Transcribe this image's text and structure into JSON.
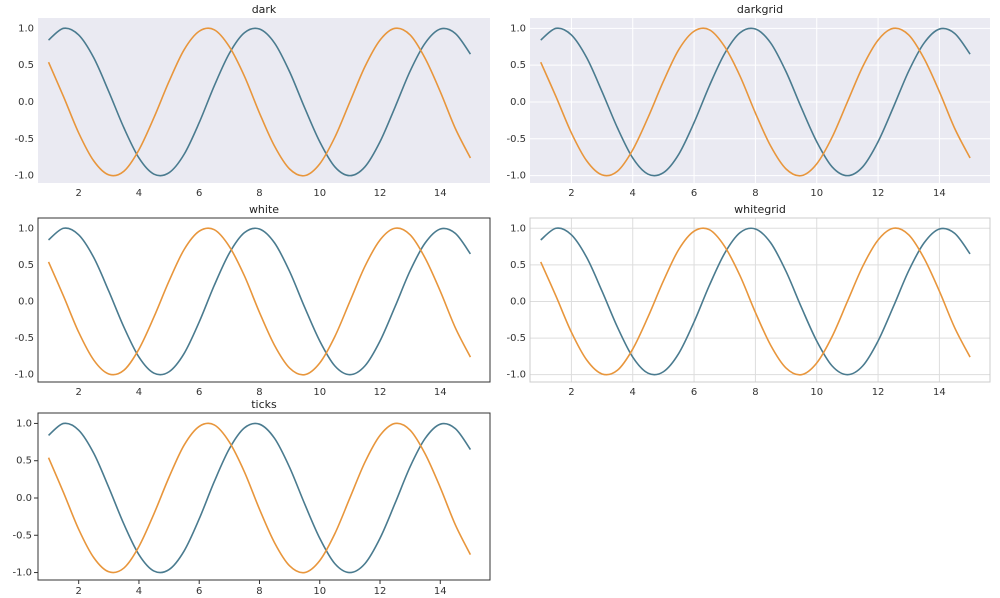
{
  "chart_data": [
    {
      "type": "line",
      "title": "dark",
      "background": "#eaeaf2",
      "grid": false,
      "frame": false,
      "tick_marks": false,
      "x": [
        1,
        1.5,
        2,
        2.5,
        3,
        3.5,
        4,
        4.5,
        5,
        5.5,
        6,
        6.5,
        7,
        7.5,
        8,
        8.5,
        9,
        9.5,
        10,
        10.5,
        11,
        11.5,
        12,
        12.5,
        13,
        13.5,
        14,
        14.5,
        15
      ],
      "series": [
        {
          "color": "#4a7b8f",
          "values": [
            0.84,
            1.0,
            0.91,
            0.6,
            0.14,
            -0.35,
            -0.76,
            -0.98,
            -0.96,
            -0.71,
            -0.28,
            0.22,
            0.66,
            0.94,
            0.99,
            0.8,
            0.41,
            -0.08,
            -0.54,
            -0.88,
            -1.0,
            -0.88,
            -0.54,
            -0.07,
            0.42,
            0.8,
            0.99,
            0.93,
            0.65
          ]
        },
        {
          "color": "#e8963c",
          "values": [
            0.54,
            0.07,
            -0.42,
            -0.8,
            -0.99,
            -0.94,
            -0.65,
            -0.21,
            0.28,
            0.71,
            0.96,
            0.98,
            0.75,
            0.35,
            -0.15,
            -0.6,
            -0.91,
            -1.0,
            -0.84,
            -0.48,
            0.0,
            0.48,
            0.84,
            1.0,
            0.91,
            0.59,
            0.14,
            -0.36,
            -0.76
          ]
        }
      ],
      "xlim": [
        0.65,
        15.65
      ],
      "ylim": [
        -1.1,
        1.14
      ],
      "xticks": [
        2,
        4,
        6,
        8,
        10,
        12,
        14
      ],
      "yticks": [
        {
          "value": 1,
          "label": "1.0"
        },
        {
          "value": 0.5,
          "label": "0.5"
        },
        {
          "value": 0,
          "label": "0.0"
        },
        {
          "value": -0.5,
          "label": "-0.5"
        },
        {
          "value": -1,
          "label": "-1.0"
        }
      ]
    },
    {
      "type": "line",
      "title": "darkgrid",
      "background": "#eaeaf2",
      "grid": true,
      "grid_color": "#ffffff",
      "frame": false,
      "tick_marks": false,
      "x": [
        1,
        1.5,
        2,
        2.5,
        3,
        3.5,
        4,
        4.5,
        5,
        5.5,
        6,
        6.5,
        7,
        7.5,
        8,
        8.5,
        9,
        9.5,
        10,
        10.5,
        11,
        11.5,
        12,
        12.5,
        13,
        13.5,
        14,
        14.5,
        15
      ],
      "series": [
        {
          "color": "#4a7b8f",
          "values": [
            0.84,
            1.0,
            0.91,
            0.6,
            0.14,
            -0.35,
            -0.76,
            -0.98,
            -0.96,
            -0.71,
            -0.28,
            0.22,
            0.66,
            0.94,
            0.99,
            0.8,
            0.41,
            -0.08,
            -0.54,
            -0.88,
            -1.0,
            -0.88,
            -0.54,
            -0.07,
            0.42,
            0.8,
            0.99,
            0.93,
            0.65
          ]
        },
        {
          "color": "#e8963c",
          "values": [
            0.54,
            0.07,
            -0.42,
            -0.8,
            -0.99,
            -0.94,
            -0.65,
            -0.21,
            0.28,
            0.71,
            0.96,
            0.98,
            0.75,
            0.35,
            -0.15,
            -0.6,
            -0.91,
            -1.0,
            -0.84,
            -0.48,
            0.0,
            0.48,
            0.84,
            1.0,
            0.91,
            0.59,
            0.14,
            -0.36,
            -0.76
          ]
        }
      ],
      "xlim": [
        0.65,
        15.65
      ],
      "ylim": [
        -1.1,
        1.14
      ],
      "xticks": [
        2,
        4,
        6,
        8,
        10,
        12,
        14
      ],
      "yticks": [
        {
          "value": 1,
          "label": "1.0"
        },
        {
          "value": 0.5,
          "label": "0.5"
        },
        {
          "value": 0,
          "label": "0.0"
        },
        {
          "value": -0.5,
          "label": "-0.5"
        },
        {
          "value": -1,
          "label": "-1.0"
        }
      ]
    },
    {
      "type": "line",
      "title": "white",
      "background": "#ffffff",
      "grid": false,
      "frame": true,
      "frame_color": "#333333",
      "tick_marks": false,
      "x": [
        1,
        1.5,
        2,
        2.5,
        3,
        3.5,
        4,
        4.5,
        5,
        5.5,
        6,
        6.5,
        7,
        7.5,
        8,
        8.5,
        9,
        9.5,
        10,
        10.5,
        11,
        11.5,
        12,
        12.5,
        13,
        13.5,
        14,
        14.5,
        15
      ],
      "series": [
        {
          "color": "#4a7b8f",
          "values": [
            0.84,
            1.0,
            0.91,
            0.6,
            0.14,
            -0.35,
            -0.76,
            -0.98,
            -0.96,
            -0.71,
            -0.28,
            0.22,
            0.66,
            0.94,
            0.99,
            0.8,
            0.41,
            -0.08,
            -0.54,
            -0.88,
            -1.0,
            -0.88,
            -0.54,
            -0.07,
            0.42,
            0.8,
            0.99,
            0.93,
            0.65
          ]
        },
        {
          "color": "#e8963c",
          "values": [
            0.54,
            0.07,
            -0.42,
            -0.8,
            -0.99,
            -0.94,
            -0.65,
            -0.21,
            0.28,
            0.71,
            0.96,
            0.98,
            0.75,
            0.35,
            -0.15,
            -0.6,
            -0.91,
            -1.0,
            -0.84,
            -0.48,
            0.0,
            0.48,
            0.84,
            1.0,
            0.91,
            0.59,
            0.14,
            -0.36,
            -0.76
          ]
        }
      ],
      "xlim": [
        0.65,
        15.65
      ],
      "ylim": [
        -1.1,
        1.14
      ],
      "xticks": [
        2,
        4,
        6,
        8,
        10,
        12,
        14
      ],
      "yticks": [
        {
          "value": 1,
          "label": "1.0"
        },
        {
          "value": 0.5,
          "label": "0.5"
        },
        {
          "value": 0,
          "label": "0.0"
        },
        {
          "value": -0.5,
          "label": "-0.5"
        },
        {
          "value": -1,
          "label": "-1.0"
        }
      ]
    },
    {
      "type": "line",
      "title": "whitegrid",
      "background": "#ffffff",
      "grid": true,
      "grid_color": "#dddddd",
      "frame": true,
      "frame_color": "#cccccc",
      "tick_marks": false,
      "x": [
        1,
        1.5,
        2,
        2.5,
        3,
        3.5,
        4,
        4.5,
        5,
        5.5,
        6,
        6.5,
        7,
        7.5,
        8,
        8.5,
        9,
        9.5,
        10,
        10.5,
        11,
        11.5,
        12,
        12.5,
        13,
        13.5,
        14,
        14.5,
        15
      ],
      "series": [
        {
          "color": "#4a7b8f",
          "values": [
            0.84,
            1.0,
            0.91,
            0.6,
            0.14,
            -0.35,
            -0.76,
            -0.98,
            -0.96,
            -0.71,
            -0.28,
            0.22,
            0.66,
            0.94,
            0.99,
            0.8,
            0.41,
            -0.08,
            -0.54,
            -0.88,
            -1.0,
            -0.88,
            -0.54,
            -0.07,
            0.42,
            0.8,
            0.99,
            0.93,
            0.65
          ]
        },
        {
          "color": "#e8963c",
          "values": [
            0.54,
            0.07,
            -0.42,
            -0.8,
            -0.99,
            -0.94,
            -0.65,
            -0.21,
            0.28,
            0.71,
            0.96,
            0.98,
            0.75,
            0.35,
            -0.15,
            -0.6,
            -0.91,
            -1.0,
            -0.84,
            -0.48,
            0.0,
            0.48,
            0.84,
            1.0,
            0.91,
            0.59,
            0.14,
            -0.36,
            -0.76
          ]
        }
      ],
      "xlim": [
        0.65,
        15.65
      ],
      "ylim": [
        -1.1,
        1.14
      ],
      "xticks": [
        2,
        4,
        6,
        8,
        10,
        12,
        14
      ],
      "yticks": [
        {
          "value": 1,
          "label": "1.0"
        },
        {
          "value": 0.5,
          "label": "0.5"
        },
        {
          "value": 0,
          "label": "0.0"
        },
        {
          "value": -0.5,
          "label": "-0.5"
        },
        {
          "value": -1,
          "label": "-1.0"
        }
      ]
    },
    {
      "type": "line",
      "title": "ticks",
      "background": "#ffffff",
      "grid": false,
      "frame": true,
      "frame_color": "#333333",
      "tick_marks": true,
      "x": [
        1,
        1.5,
        2,
        2.5,
        3,
        3.5,
        4,
        4.5,
        5,
        5.5,
        6,
        6.5,
        7,
        7.5,
        8,
        8.5,
        9,
        9.5,
        10,
        10.5,
        11,
        11.5,
        12,
        12.5,
        13,
        13.5,
        14,
        14.5,
        15
      ],
      "series": [
        {
          "color": "#4a7b8f",
          "values": [
            0.84,
            1.0,
            0.91,
            0.6,
            0.14,
            -0.35,
            -0.76,
            -0.98,
            -0.96,
            -0.71,
            -0.28,
            0.22,
            0.66,
            0.94,
            0.99,
            0.8,
            0.41,
            -0.08,
            -0.54,
            -0.88,
            -1.0,
            -0.88,
            -0.54,
            -0.07,
            0.42,
            0.8,
            0.99,
            0.93,
            0.65
          ]
        },
        {
          "color": "#e8963c",
          "values": [
            0.54,
            0.07,
            -0.42,
            -0.8,
            -0.99,
            -0.94,
            -0.65,
            -0.21,
            0.28,
            0.71,
            0.96,
            0.98,
            0.75,
            0.35,
            -0.15,
            -0.6,
            -0.91,
            -1.0,
            -0.84,
            -0.48,
            0.0,
            0.48,
            0.84,
            1.0,
            0.91,
            0.59,
            0.14,
            -0.36,
            -0.76
          ]
        }
      ],
      "xlim": [
        0.65,
        15.65
      ],
      "ylim": [
        -1.1,
        1.14
      ],
      "xticks": [
        2,
        4,
        6,
        8,
        10,
        12,
        14
      ],
      "yticks": [
        {
          "value": 1,
          "label": "1.0"
        },
        {
          "value": 0.5,
          "label": "0.5"
        },
        {
          "value": 0,
          "label": "0.0"
        },
        {
          "value": -0.5,
          "label": "-0.5"
        },
        {
          "value": -1,
          "label": "-1.0"
        }
      ]
    }
  ]
}
